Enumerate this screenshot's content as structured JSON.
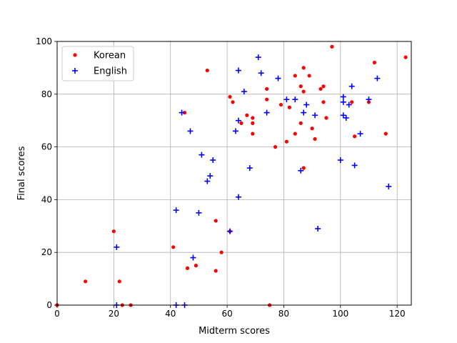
{
  "chart_data": {
    "type": "scatter",
    "title": "",
    "xlabel": "Midterm scores",
    "ylabel": "Final scores",
    "xlim": [
      0,
      125
    ],
    "ylim": [
      0,
      100
    ],
    "xticks": [
      0,
      20,
      40,
      60,
      80,
      100,
      120
    ],
    "yticks": [
      0,
      20,
      40,
      60,
      80,
      100
    ],
    "grid": true,
    "legend_position": "top-left",
    "series": [
      {
        "name": "Korean",
        "color": "#ff0000",
        "marker": "dot",
        "points": [
          [
            0,
            0
          ],
          [
            10,
            9
          ],
          [
            20,
            28
          ],
          [
            22,
            9
          ],
          [
            23,
            0
          ],
          [
            26,
            0
          ],
          [
            41,
            22
          ],
          [
            45,
            73
          ],
          [
            46,
            14
          ],
          [
            49,
            15
          ],
          [
            53,
            89
          ],
          [
            56,
            32
          ],
          [
            56,
            13
          ],
          [
            58,
            20
          ],
          [
            61,
            79
          ],
          [
            61,
            28
          ],
          [
            62,
            77
          ],
          [
            65,
            69
          ],
          [
            67,
            72
          ],
          [
            69,
            71
          ],
          [
            69,
            69
          ],
          [
            69,
            65
          ],
          [
            74,
            82
          ],
          [
            74,
            78
          ],
          [
            75,
            0
          ],
          [
            77,
            60
          ],
          [
            79,
            76
          ],
          [
            81,
            62
          ],
          [
            82,
            75
          ],
          [
            84,
            87
          ],
          [
            84,
            65
          ],
          [
            86,
            69
          ],
          [
            86,
            83
          ],
          [
            87,
            90
          ],
          [
            87,
            81
          ],
          [
            87,
            52
          ],
          [
            89,
            87
          ],
          [
            90,
            67
          ],
          [
            91,
            63
          ],
          [
            93,
            82
          ],
          [
            94,
            83
          ],
          [
            94,
            77
          ],
          [
            95,
            71
          ],
          [
            97,
            98
          ],
          [
            104,
            77
          ],
          [
            105,
            64
          ],
          [
            110,
            77
          ],
          [
            112,
            92
          ],
          [
            116,
            65
          ],
          [
            123,
            94
          ]
        ]
      },
      {
        "name": "English",
        "color": "#0000ff",
        "marker": "plus",
        "points": [
          [
            21,
            22
          ],
          [
            21,
            0
          ],
          [
            42,
            36
          ],
          [
            42,
            0
          ],
          [
            44,
            73
          ],
          [
            45,
            0
          ],
          [
            47,
            66
          ],
          [
            48,
            18
          ],
          [
            50,
            35
          ],
          [
            51,
            57
          ],
          [
            53,
            47
          ],
          [
            54,
            49
          ],
          [
            55,
            55
          ],
          [
            61,
            28
          ],
          [
            63,
            66
          ],
          [
            64,
            89
          ],
          [
            64,
            70
          ],
          [
            64,
            41
          ],
          [
            66,
            81
          ],
          [
            68,
            52
          ],
          [
            71,
            94
          ],
          [
            72,
            88
          ],
          [
            74,
            73
          ],
          [
            78,
            86
          ],
          [
            81,
            78
          ],
          [
            84,
            78
          ],
          [
            86,
            51
          ],
          [
            87,
            73
          ],
          [
            88,
            76
          ],
          [
            91,
            72
          ],
          [
            92,
            29
          ],
          [
            100,
            55
          ],
          [
            101,
            79
          ],
          [
            101,
            77
          ],
          [
            101,
            72
          ],
          [
            102,
            71
          ],
          [
            103,
            76
          ],
          [
            104,
            83
          ],
          [
            105,
            53
          ],
          [
            107,
            65
          ],
          [
            110,
            78
          ],
          [
            113,
            86
          ],
          [
            117,
            45
          ]
        ]
      }
    ]
  }
}
